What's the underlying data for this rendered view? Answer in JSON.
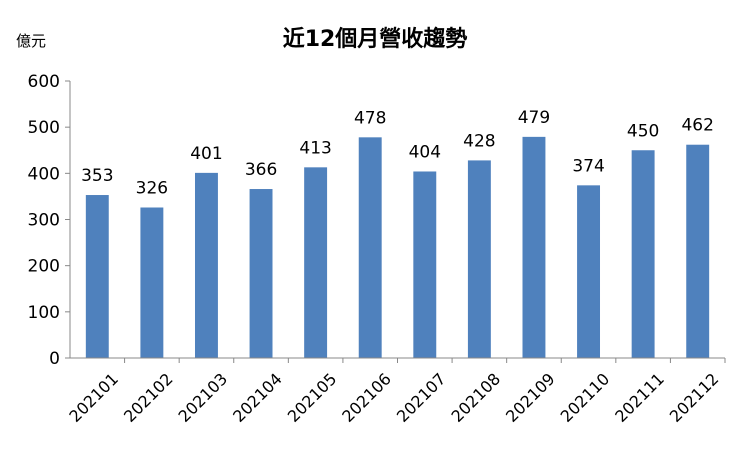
{
  "chart_data": {
    "type": "bar",
    "title": "近12個月營收趨勢",
    "ylabel": "億元",
    "xlabel": "",
    "categories": [
      "202101",
      "202102",
      "202103",
      "202104",
      "202105",
      "202106",
      "202107",
      "202108",
      "202109",
      "202110",
      "202111",
      "202112"
    ],
    "values": [
      353,
      326,
      401,
      366,
      413,
      478,
      404,
      428,
      479,
      374,
      450,
      462
    ],
    "ylim": [
      0,
      600
    ],
    "yticks": [
      0,
      100,
      200,
      300,
      400,
      500,
      600
    ],
    "grid": false,
    "legend": "none",
    "data_labels": true,
    "bar_color": "#4F81BD"
  }
}
